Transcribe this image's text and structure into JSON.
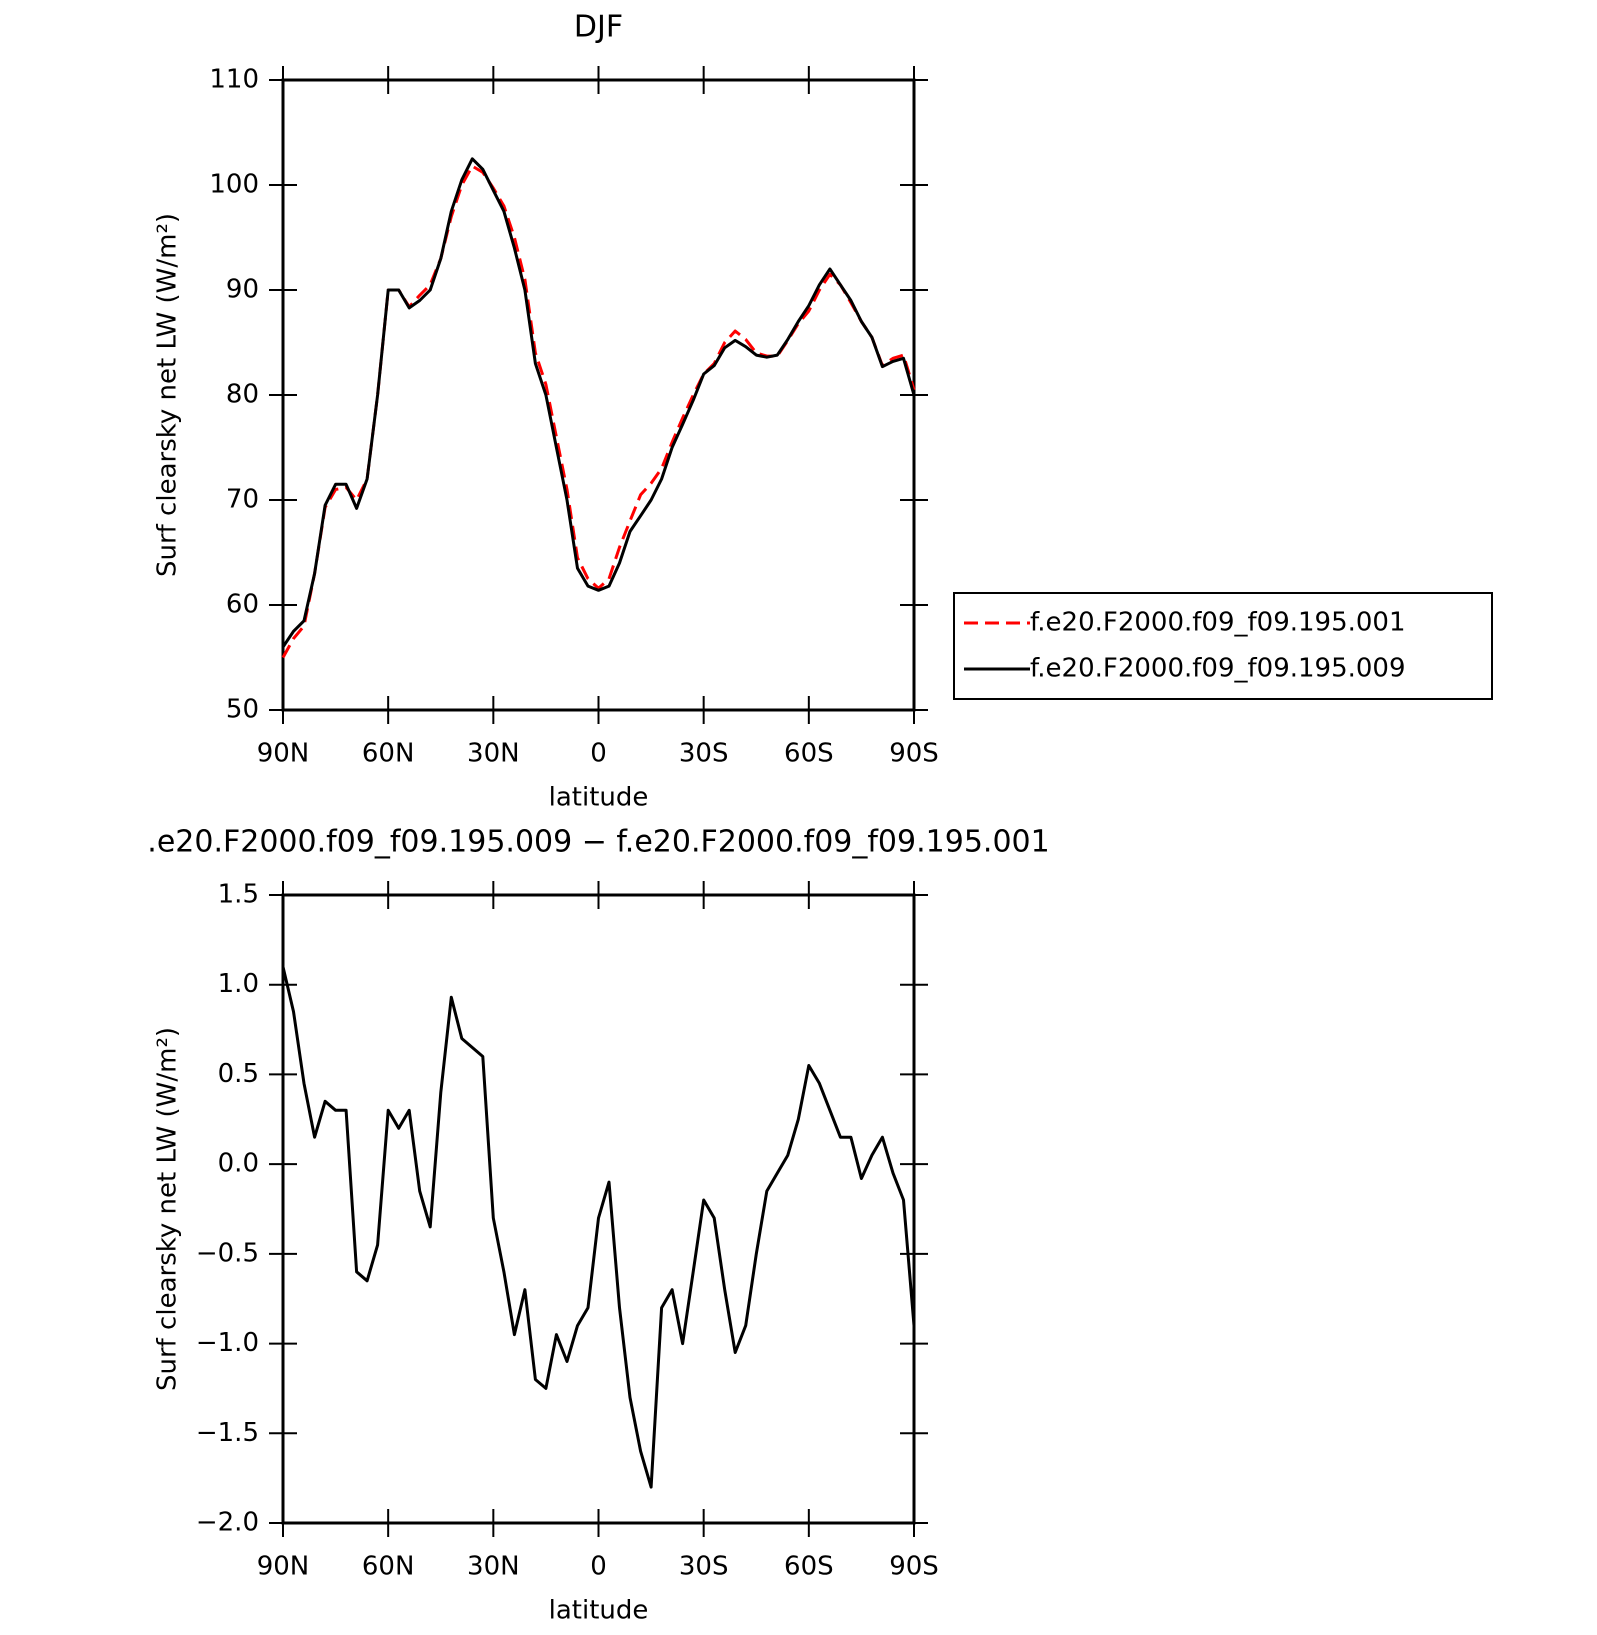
{
  "chart_data": [
    {
      "type": "line",
      "title": "DJF",
      "x_label": "latitude",
      "y_label": "Surf clearsky net LW (W/m²)",
      "x": [
        90,
        87,
        84,
        81,
        78,
        75,
        72,
        69,
        66,
        63,
        60,
        57,
        54,
        51,
        48,
        45,
        42,
        39,
        36,
        33,
        30,
        27,
        24,
        21,
        18,
        15,
        12,
        9,
        6,
        3,
        0,
        -3,
        -6,
        -9,
        -12,
        -15,
        -18,
        -21,
        -24,
        -27,
        -30,
        -33,
        -36,
        -39,
        -42,
        -45,
        -48,
        -51,
        -54,
        -57,
        -60,
        -63,
        -66,
        -69,
        -72,
        -75,
        -78,
        -81,
        -84,
        -87,
        -90
      ],
      "xlim": [
        90,
        -90
      ],
      "xticks": [
        {
          "value": 90,
          "label": "90N"
        },
        {
          "value": 60,
          "label": "60N"
        },
        {
          "value": 30,
          "label": "30N"
        },
        0,
        {
          "value": -30,
          "label": "30S"
        },
        {
          "value": -60,
          "label": "60S"
        },
        {
          "value": -90,
          "label": "90S"
        }
      ],
      "ylim": [
        50,
        110
      ],
      "yticks": [
        50,
        60,
        70,
        80,
        90,
        100,
        110
      ],
      "legend": "right",
      "series": [
        {
          "name": "f.e20.F2000.f09_f09.195.001",
          "color": "#ff0000",
          "dash": true,
          "values": [
            55,
            56.8,
            58,
            63,
            69.3,
            71,
            71.2,
            70,
            72,
            80,
            90,
            90,
            88.4,
            89.5,
            90.5,
            93,
            97,
            100,
            101.8,
            101.2,
            99.7,
            98,
            95,
            91,
            84,
            81,
            76,
            71,
            64.5,
            62.5,
            61.6,
            62.5,
            65.5,
            68,
            70.5,
            71.6,
            73,
            75.5,
            77.8,
            80,
            82,
            83,
            85,
            86.1,
            85.3,
            84,
            83.7,
            83.7,
            85.2,
            86.8,
            88,
            90,
            91.5,
            90.5,
            88.8,
            87,
            85.5,
            82.8,
            83.5,
            83.8,
            80.5
          ]
        },
        {
          "name": "f.e20.F2000.f09_f09.195.009",
          "color": "#000000",
          "dash": false,
          "values": [
            56,
            57.5,
            58.5,
            63,
            69.5,
            71.5,
            71.5,
            69.2,
            72,
            80,
            90,
            90,
            88.3,
            89,
            90,
            93,
            97.5,
            100.5,
            102.5,
            101.5,
            99.5,
            97.5,
            94,
            90,
            83,
            80,
            75,
            70,
            63.5,
            61.8,
            61.4,
            61.8,
            64,
            67,
            68.5,
            70,
            72,
            75,
            77.2,
            79.5,
            82,
            82.8,
            84.5,
            85.2,
            84.6,
            83.8,
            83.6,
            83.8,
            85.3,
            87,
            88.5,
            90.5,
            92,
            90.5,
            89,
            87,
            85.5,
            82.7,
            83.2,
            83.5,
            80
          ]
        }
      ]
    },
    {
      "type": "line",
      "title": ".e20.F2000.f09_f09.195.009 − f.e20.F2000.f09_f09.195.001",
      "x_label": "latitude",
      "y_label": "Surf clearsky net LW (W/m²)",
      "x": [
        90,
        87,
        84,
        81,
        78,
        75,
        72,
        69,
        66,
        63,
        60,
        57,
        54,
        51,
        48,
        45,
        42,
        39,
        36,
        33,
        30,
        27,
        24,
        21,
        18,
        15,
        12,
        9,
        6,
        3,
        0,
        -3,
        -6,
        -9,
        -12,
        -15,
        -18,
        -21,
        -24,
        -27,
        -30,
        -33,
        -36,
        -39,
        -42,
        -45,
        -48,
        -51,
        -54,
        -57,
        -60,
        -63,
        -66,
        -69,
        -72,
        -75,
        -78,
        -81,
        -84,
        -87,
        -90
      ],
      "xlim": [
        90,
        -90
      ],
      "xticks": [
        {
          "value": 90,
          "label": "90N"
        },
        {
          "value": 60,
          "label": "60N"
        },
        {
          "value": 30,
          "label": "30N"
        },
        0,
        {
          "value": -30,
          "label": "30S"
        },
        {
          "value": -60,
          "label": "60S"
        },
        {
          "value": -90,
          "label": "90S"
        }
      ],
      "ylim": [
        -2,
        1.5
      ],
      "yticks": [
        {
          "value": -2,
          "label": "−2.0"
        },
        {
          "value": -1.5,
          "label": "−1.5"
        },
        {
          "value": -1,
          "label": "−1.0"
        },
        {
          "value": -0.5,
          "label": "−0.5"
        },
        {
          "value": 0,
          "label": "0.0"
        },
        0.5,
        {
          "value": 1,
          "label": "1.0"
        },
        1.5
      ],
      "color": "#000000",
      "values": [
        1.1,
        0.85,
        0.45,
        0.15,
        0.35,
        0.3,
        0.3,
        -0.6,
        -0.65,
        -0.45,
        0.3,
        0.2,
        0.3,
        -0.15,
        -0.35,
        0.4,
        0.93,
        0.7,
        0.65,
        0.6,
        -0.3,
        -0.6,
        -0.95,
        -0.7,
        -1.2,
        -1.25,
        -0.95,
        -1.1,
        -0.9,
        -0.8,
        -0.3,
        -0.1,
        -0.8,
        -1.3,
        -1.6,
        -1.8,
        -0.8,
        -0.7,
        -1.0,
        -0.6,
        -0.2,
        -0.3,
        -0.7,
        -1.05,
        -0.9,
        -0.5,
        -0.15,
        -0.05,
        0.05,
        0.25,
        0.55,
        0.45,
        0.3,
        0.15,
        0.15,
        -0.08,
        0.05,
        0.15,
        -0.05,
        -0.2,
        -0.9
      ]
    }
  ]
}
